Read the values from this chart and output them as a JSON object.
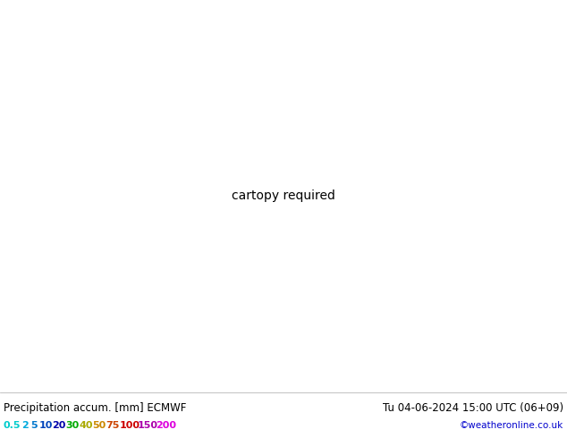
{
  "title_left": "Precipitation accum. [mm] ECMWF",
  "title_right": "Tu 04-06-2024 15:00 UTC (06+09)",
  "credit": "©weatheronline.co.uk",
  "legend_values": [
    "0.5",
    "2",
    "5",
    "10",
    "20",
    "30",
    "40",
    "50",
    "75",
    "100",
    "150",
    "200"
  ],
  "legend_colors_text": [
    "#00cccc",
    "#00aadd",
    "#0077cc",
    "#0044bb",
    "#0000aa",
    "#00aa00",
    "#aaaa00",
    "#cc8800",
    "#cc4400",
    "#cc0000",
    "#aa00aa",
    "#dd00dd"
  ],
  "precip_color_stops": [
    [
      0.5,
      "#c8f0ff"
    ],
    [
      2,
      "#a0dcff"
    ],
    [
      5,
      "#78c8ff"
    ],
    [
      10,
      "#50b4ff"
    ],
    [
      20,
      "#2890e8"
    ],
    [
      30,
      "#0064d0"
    ],
    [
      40,
      "#0046b8"
    ],
    [
      50,
      "#0032a0"
    ],
    [
      75,
      "#4b0082"
    ],
    [
      100,
      "#8b0000"
    ],
    [
      150,
      "#ff1493"
    ],
    [
      200,
      "#ff69b4"
    ]
  ],
  "land_color": "#c8e8a0",
  "sea_color": "#c8e8f0",
  "coast_color": "#888888",
  "border_color": "#aaaaaa",
  "isobar_blue": "#0000cc",
  "isobar_red": "#cc0000",
  "figsize": [
    6.34,
    4.9
  ],
  "dpi": 100,
  "bottom_bg": "#ffffff",
  "bottom_text_color": "#000000",
  "credit_color": "#0000cc",
  "title_fontsize": 8.5,
  "legend_fontsize": 8.0,
  "credit_fontsize": 7.5,
  "map_extent": [
    10,
    110,
    20,
    75
  ],
  "isobar_label_fontsize": 6.5
}
